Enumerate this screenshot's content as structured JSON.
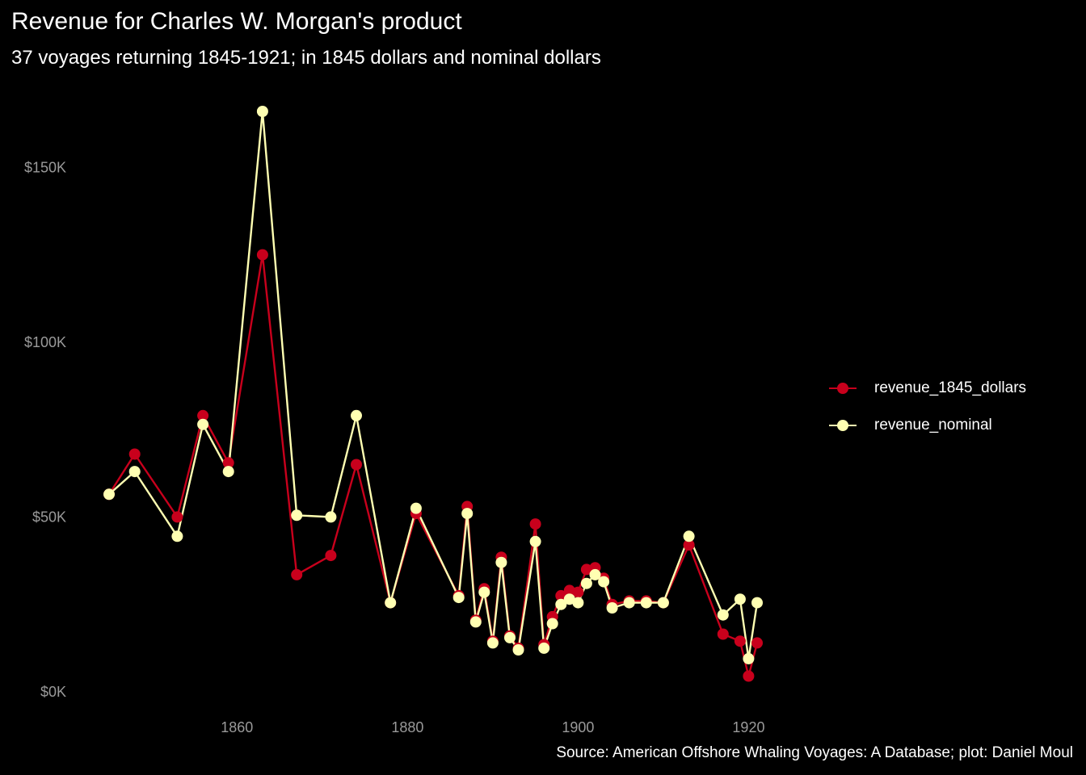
{
  "colors": {
    "background": "#000000",
    "series_1845": "#c8001c",
    "series_nominal": "#ffffb2",
    "text": "#ffffff",
    "axis_text": "#9a9a9a"
  },
  "chart_data": {
    "type": "line",
    "title": "Revenue for Charles W. Morgan's product",
    "subtitle": "37 voyages returning 1845-1921; in 1845 dollars and nominal dollars",
    "caption": "Source: American Offshore Whaling Voyages: A Database; plot: Daniel Moul",
    "xlabel": "",
    "ylabel": "",
    "xlim": [
      1843.5,
      1923
    ],
    "ylim": [
      0,
      167000
    ],
    "x_ticks": [
      1860,
      1880,
      1900,
      1920
    ],
    "y_ticks": [
      {
        "value": 0,
        "label": "$0K"
      },
      {
        "value": 50000,
        "label": "$50K"
      },
      {
        "value": 100000,
        "label": "$100K"
      },
      {
        "value": 150000,
        "label": "$150K"
      }
    ],
    "grid": false,
    "legend_position": "right",
    "series": [
      {
        "name": "revenue_1845_dollars",
        "color": "#c8001c",
        "x": [
          1845,
          1848,
          1853,
          1856,
          1859,
          1863,
          1867,
          1871,
          1874,
          1878,
          1881,
          1886,
          1887,
          1888,
          1889,
          1890,
          1891,
          1892,
          1893,
          1895,
          1896,
          1897,
          1898,
          1899,
          1900,
          1901,
          1902,
          1903,
          1904,
          1906,
          1908,
          1910,
          1913,
          1917,
          1919,
          1920,
          1921
        ],
        "y": [
          56500,
          68000,
          50000,
          79000,
          65500,
          125000,
          33500,
          39000,
          65000,
          25500,
          51000,
          27500,
          53000,
          20500,
          29500,
          14500,
          38500,
          16000,
          12500,
          48000,
          13500,
          21500,
          27500,
          29000,
          28500,
          35000,
          35500,
          32500,
          25000,
          26000,
          26000,
          25500,
          42000,
          16500,
          14500,
          4500,
          14000
        ]
      },
      {
        "name": "revenue_nominal",
        "color": "#ffffb2",
        "x": [
          1845,
          1848,
          1853,
          1856,
          1859,
          1863,
          1867,
          1871,
          1874,
          1878,
          1881,
          1886,
          1887,
          1888,
          1889,
          1890,
          1891,
          1892,
          1893,
          1895,
          1896,
          1897,
          1898,
          1899,
          1900,
          1901,
          1902,
          1903,
          1904,
          1906,
          1908,
          1910,
          1913,
          1917,
          1919,
          1920,
          1921
        ],
        "y": [
          56500,
          63000,
          44500,
          76500,
          63000,
          166000,
          50500,
          50000,
          79000,
          25500,
          52500,
          27000,
          51000,
          20000,
          28500,
          14000,
          37000,
          15500,
          12000,
          43000,
          12500,
          19500,
          25000,
          26500,
          25500,
          31000,
          33500,
          31500,
          24000,
          25500,
          25500,
          25500,
          44500,
          22000,
          26500,
          9500,
          25500
        ]
      }
    ]
  }
}
